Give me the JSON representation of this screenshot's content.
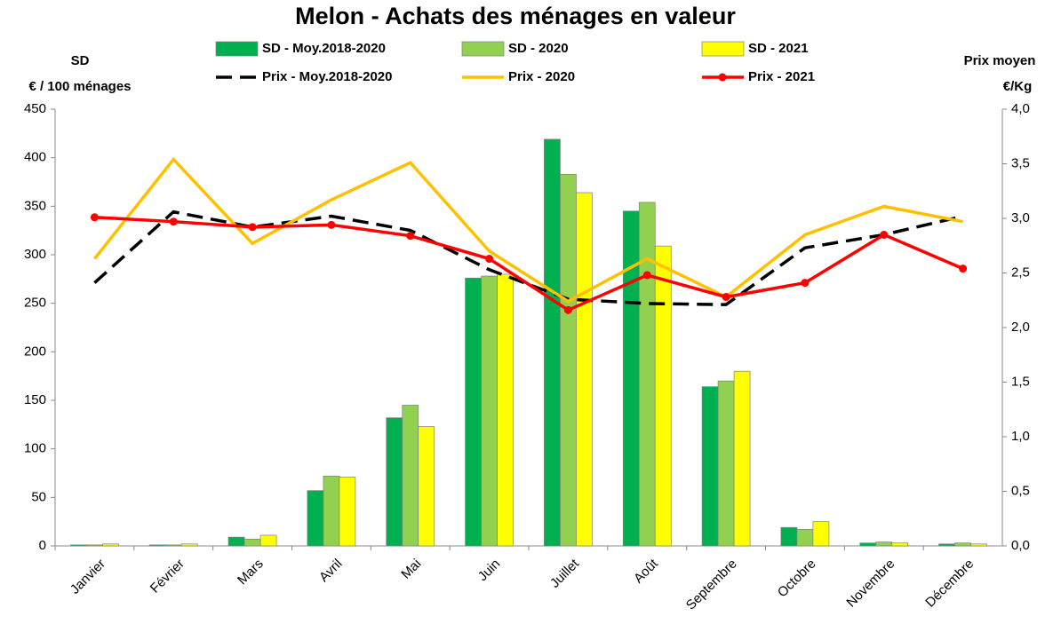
{
  "chart_data": {
    "type": "bar",
    "title": "Melon - Achats des ménages en valeur",
    "y_label": [
      "SD",
      "€ / 100 ménages"
    ],
    "y2_label": [
      "Prix moyen",
      "€/Kg"
    ],
    "categories": [
      "Janvier",
      "Février",
      "Mars",
      "Avril",
      "Mai",
      "Juin",
      "Juillet",
      "Août",
      "Septembre",
      "Octobre",
      "Novembre",
      "Décembre"
    ],
    "ylim": [
      0,
      450
    ],
    "yticks": [
      0,
      50,
      100,
      150,
      200,
      250,
      300,
      350,
      400,
      450
    ],
    "y2lim": [
      0,
      4
    ],
    "y2ticks": [
      {
        "value": 0,
        "label": "0,0"
      },
      {
        "value": 0.5,
        "label": "0,5"
      },
      {
        "value": 1,
        "label": "1,0"
      },
      {
        "value": 1.5,
        "label": "1,5"
      },
      {
        "value": 2,
        "label": "2,0"
      },
      {
        "value": 2.5,
        "label": "2,5"
      },
      {
        "value": 3,
        "label": "3,0"
      },
      {
        "value": 3.5,
        "label": "3,5"
      },
      {
        "value": 4,
        "label": "4,0"
      }
    ],
    "series": [
      {
        "name": "SD - Moy.2018-2020",
        "type": "bar",
        "color": "#00b050",
        "values": [
          1,
          1,
          9,
          57,
          132,
          276,
          419,
          345,
          164,
          19,
          3,
          2
        ]
      },
      {
        "name": "SD - 2020",
        "type": "bar",
        "color": "#92d050",
        "values": [
          1,
          1,
          7,
          72,
          145,
          278,
          383,
          354,
          170,
          17,
          4,
          3
        ]
      },
      {
        "name": "SD - 2021",
        "type": "bar",
        "color": "#ffff00",
        "values": [
          2,
          2,
          11,
          71,
          123,
          280,
          364,
          309,
          180,
          25,
          3,
          2
        ]
      },
      {
        "name": "Prix - Moy.2018-2020",
        "type": "line",
        "axis": "y2",
        "color": "#000000",
        "dashed": true,
        "values": [
          2.41,
          3.06,
          2.92,
          3.02,
          2.89,
          2.53,
          2.26,
          2.22,
          2.21,
          2.73,
          2.85,
          3.02
        ]
      },
      {
        "name": "Prix - 2020",
        "type": "line",
        "axis": "y2",
        "color": "#ffc000",
        "values": [
          2.63,
          3.54,
          2.77,
          3.17,
          3.51,
          2.7,
          2.24,
          2.63,
          2.28,
          2.85,
          3.11,
          2.97
        ]
      },
      {
        "name": "Prix - 2021",
        "type": "line",
        "axis": "y2",
        "color": "#ff0000",
        "marker": true,
        "values": [
          3.01,
          2.97,
          2.92,
          2.94,
          2.84,
          2.63,
          2.16,
          2.48,
          2.28,
          2.41,
          2.85,
          2.54
        ]
      }
    ]
  }
}
